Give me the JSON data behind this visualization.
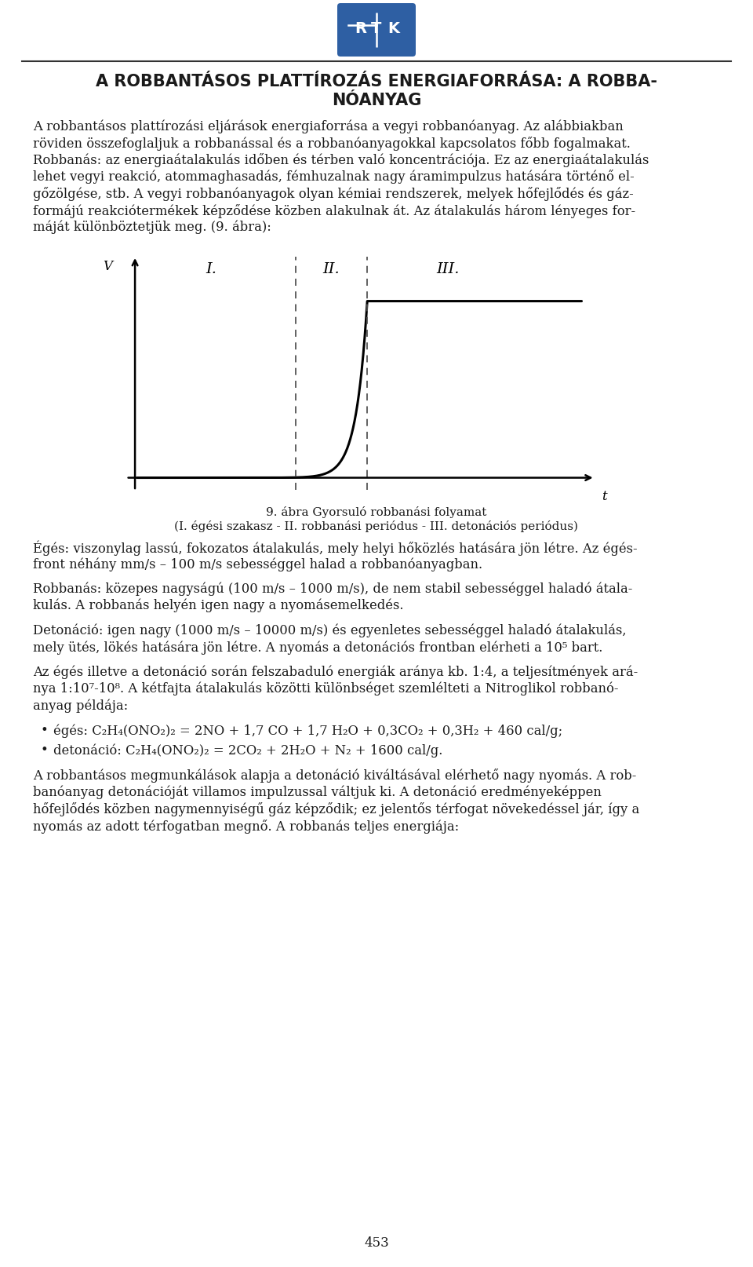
{
  "title_line1": "A ROBBANTÁSOS PLATTÍROZÁS ENERGIAFORRÁSA: A ROBBA-",
  "title_line2": "NÓANYAG",
  "para1_lines": [
    "A robbantásos plattírozási eljárások energiaforrása a vegyi robbanóanyag. Az alábbiakban",
    "röviden összefoglaljuk a robbanással és a robbanóanyagokkal kapcsolatos főbb fogalmakat.",
    "Robbanás: az energiaátalakulás időben és térben való koncentrációja. Ez az energiaátalakulás",
    "lehet vegyi reakció, atommaghasadás, fémhuzalnak nagy áramimpulzus hatására történő el-",
    "gőzölgése, stb. A vegyi robbanóanyagok olyan kémiai rendszerek, melyek hőfejlődés és gáz-",
    "formájú reakciótermékek képződése közben alakulnak át. Az átalakulás három lényeges for-",
    "máját különböztetjük meg. (9. ábra):"
  ],
  "fig_caption1": "9. ábra Gyorsuló robbanási folyamat",
  "fig_caption2": "(I. égési szakasz - II. robbanási periódus - III. detonációs periódus)",
  "para_eges_lines": [
    "Égés: viszonylag lassú, fokozatos átalakulás, mely helyi hőközlés hatására jön létre. Az égés-",
    "front néhány mm/s – 100 m/s sebességgel halad a robbanóanyagban."
  ],
  "para_robba_lines": [
    "Robbanás: közepes nagyságú (100 m/s – 1000 m/s), de nem stabil sebességgel haladó átala-",
    "kulás. A robbanás helyén igen nagy a nyomásemelkedés."
  ],
  "para_det_lines": [
    "Detonáció: igen nagy (1000 m/s – 10000 m/s) és egyenletes sebességgel haladó átalakulás,",
    "mely ütés, lökés hatására jön létre. A nyomás a detonációs frontban elérheti a 10⁵ bart."
  ],
  "para_ratio_lines": [
    "Az égés illetve a detonáció során felszabaduló energiák aránya kb. 1:4, a teljesítmények ará-",
    "nya 1:10⁷-10⁸. A kétfajta átalakulás közötti különbséget szemlélteti a Nitroglikol robbanó-",
    "anyag példája:"
  ],
  "bullet1": "égés: C₂H₄(ONO₂)₂ = 2NO + 1,7 CO + 1,7 H₂O + 0,3CO₂ + 0,3H₂ + 460 cal/g;",
  "bullet2": "detonáció: C₂H₄(ONO₂)₂ = 2CO₂ + 2H₂O + N₂ + 1600 cal/g.",
  "para_final_lines": [
    "A robbantásos megmunkálások alapja a detonáció kiváltásával elérhető nagy nyomás. A rob-",
    "banóanyag detonációját villamos impulzussal váltjuk ki. A detonáció eredményeképpen",
    "hőfejlődés közben nagymennyiségű gáz képződik; ez jelentős térfogat növekedéssel jár, így a",
    "nyomás az adott térfogatban megnő. A robbanás teljes energiája:"
  ],
  "page_number": "453",
  "bg_color": "#ffffff",
  "text_color": "#1a1a1a",
  "logo_bg_color": "#2e5fa3",
  "logo_text_color": "#ffffff",
  "separator_color": "#333333"
}
